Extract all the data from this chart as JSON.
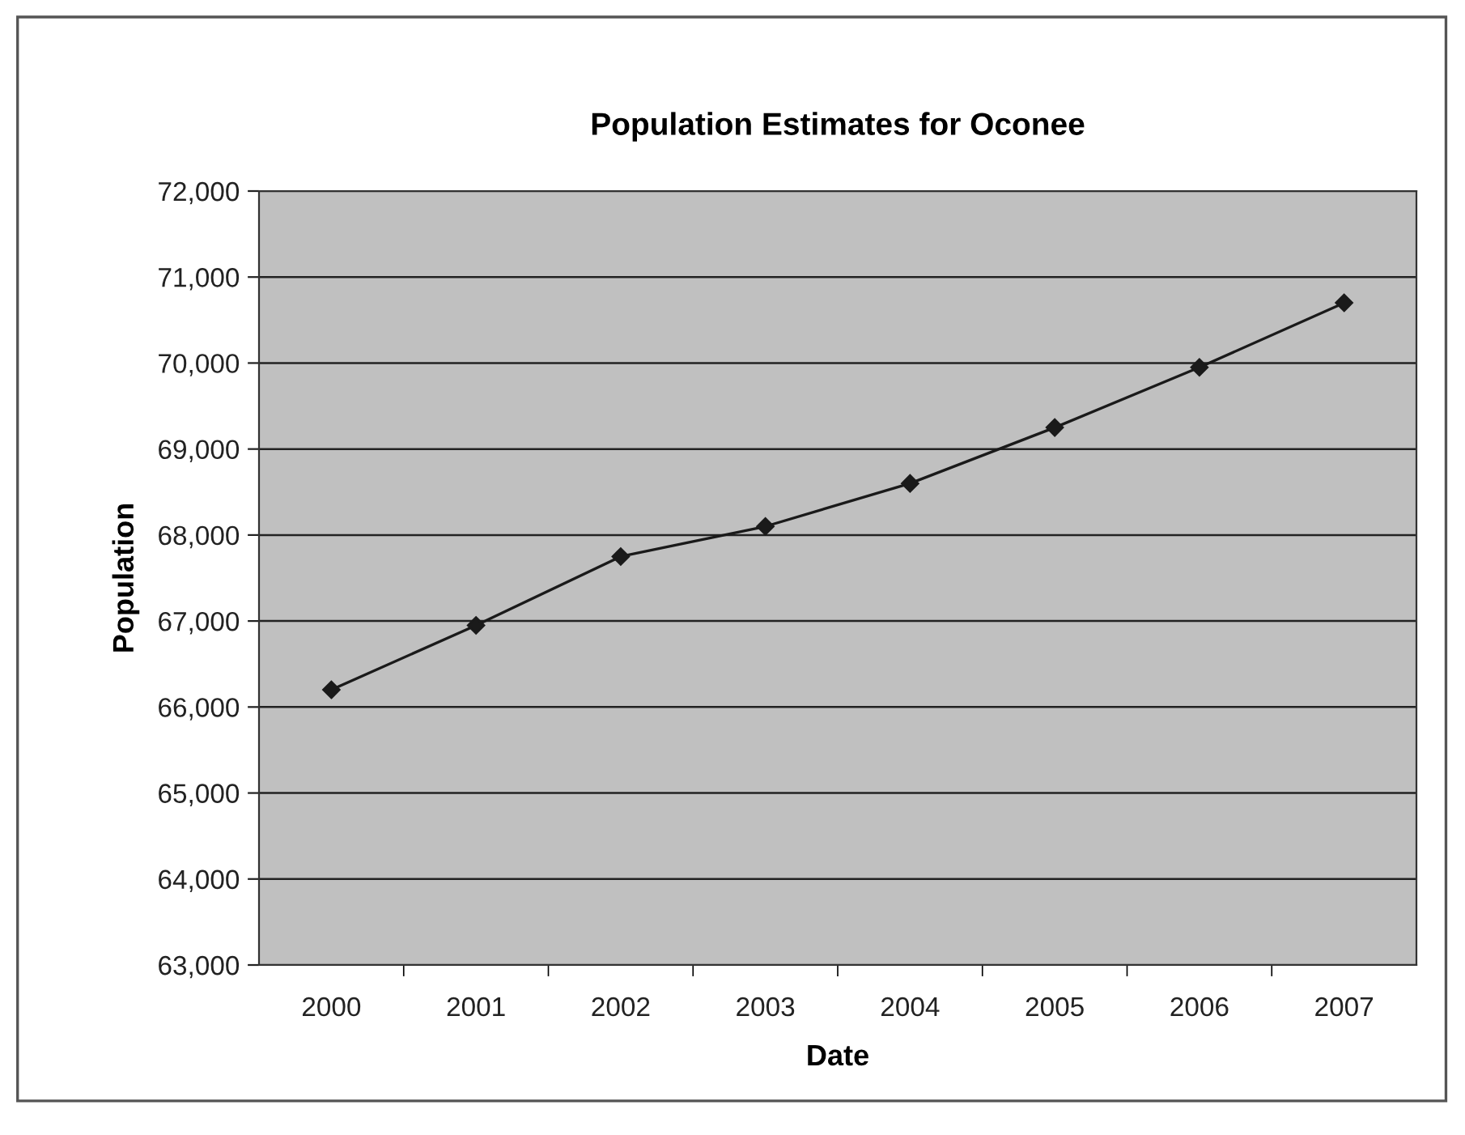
{
  "chart_data": {
    "type": "line",
    "title": "Population Estimates for Oconee",
    "xlabel": "Date",
    "ylabel": "Population",
    "categories": [
      "2000",
      "2001",
      "2002",
      "2003",
      "2004",
      "2005",
      "2006",
      "2007"
    ],
    "series": [
      {
        "color": "#1a1a1a",
        "values": [
          66200,
          66950,
          67750,
          68100,
          68600,
          69250,
          69950,
          70700
        ]
      }
    ],
    "ylim": [
      63000,
      72000
    ],
    "yticks": [
      {
        "value": 63000,
        "label": "63,000"
      },
      {
        "value": 64000,
        "label": "64,000"
      },
      {
        "value": 65000,
        "label": "65,000"
      },
      {
        "value": 66000,
        "label": "66,000"
      },
      {
        "value": 67000,
        "label": "67,000"
      },
      {
        "value": 68000,
        "label": "68,000"
      },
      {
        "value": 69000,
        "label": "69,000"
      },
      {
        "value": 70000,
        "label": "70,000"
      },
      {
        "value": 71000,
        "label": "71,000"
      },
      {
        "value": 72000,
        "label": "72,000"
      }
    ],
    "grid": "y",
    "marker": "diamond",
    "line_style": "solid"
  }
}
